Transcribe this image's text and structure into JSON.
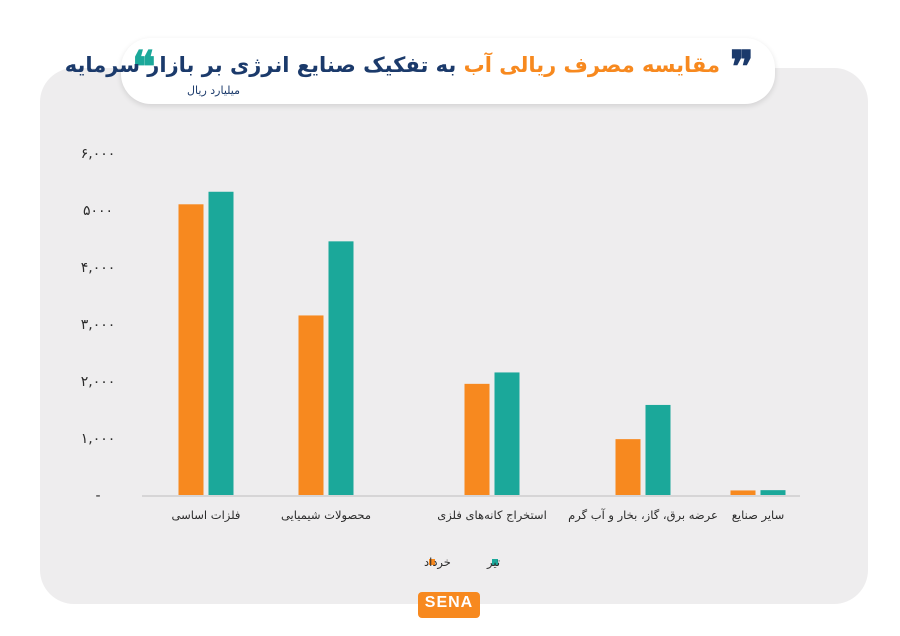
{
  "header": {
    "title_accent": "مقایسه مصرف ریالی آب",
    "title_main": "به تفکیک صنایع انرژی بر بازار سرمایه",
    "quote_left": "❝",
    "quote_right": "❞"
  },
  "logo": {
    "text": "SENA"
  },
  "colors": {
    "khordad": "#f7891f",
    "tir": "#1ba89a",
    "axis": "#9a9a9a"
  },
  "chart_data": {
    "type": "bar",
    "title": "مقایسه مصرف ریالی آب به تفکیک صنایع انرژی بر بازار سرمایه",
    "ylabel": "میلیارد ریال",
    "xlabel": "",
    "ylim": [
      0,
      6000
    ],
    "yticks": [
      0,
      1000,
      2000,
      3000,
      4000,
      5000,
      6000
    ],
    "ytick_labels": [
      "-",
      "۱,۰۰۰",
      "۲,۰۰۰",
      "۳,۰۰۰",
      "۴,۰۰۰",
      "۵۰۰۰",
      "۶,۰۰۰"
    ],
    "grid": false,
    "legend": "bottom-center",
    "categories": [
      "فلزات اساسی",
      "محصولات شیمیایی",
      "استخراج کانه‌های فلزی",
      "عرضه برق، گاز، بخار و آب گرم",
      "سایر صنایع"
    ],
    "series": [
      {
        "name": "خرداد",
        "values": [
          5100,
          3150,
          1950,
          980,
          80
        ]
      },
      {
        "name": "تیر",
        "values": [
          5320,
          4450,
          2150,
          1580,
          85
        ]
      }
    ]
  }
}
